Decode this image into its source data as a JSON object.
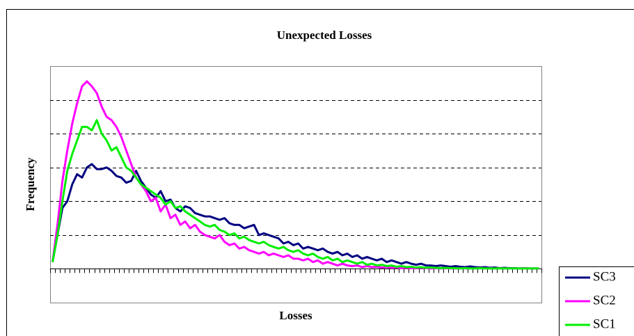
{
  "chart_data": {
    "type": "line",
    "title": "Unexpected Losses",
    "x_label": "Losses",
    "y_label": "Frequency",
    "categories": [
      null,
      null,
      null,
      null,
      null,
      null,
      null,
      null,
      null,
      null,
      null,
      null,
      null,
      null,
      null,
      null,
      null,
      null,
      null,
      null,
      null,
      null,
      null,
      null,
      null,
      null,
      null,
      null,
      null,
      null,
      null,
      null,
      null,
      null,
      null,
      null,
      null,
      null,
      null,
      null,
      null,
      null,
      null,
      null,
      null,
      null,
      null,
      null,
      null,
      null,
      null,
      null,
      null,
      null,
      null,
      null,
      null,
      null,
      null,
      null,
      null,
      null,
      null,
      null,
      null,
      null,
      null,
      null,
      null,
      null,
      null,
      null,
      null,
      null,
      null,
      null,
      null,
      null,
      null,
      null,
      null,
      null,
      null,
      null,
      null,
      null,
      null,
      null,
      null,
      null,
      null,
      null,
      null,
      null,
      null,
      null,
      null,
      null,
      null,
      null
    ],
    "ylim": [
      -1,
      6
    ],
    "yticks": [
      0,
      1,
      2,
      3,
      4,
      5
    ],
    "grid": true,
    "legend": "right",
    "series": [
      {
        "name": "SC3",
        "color": "#000080",
        "values": [
          0.2,
          1.0,
          1.8,
          2.0,
          2.5,
          2.8,
          2.7,
          3.0,
          3.1,
          2.95,
          2.95,
          3.0,
          2.9,
          2.75,
          2.7,
          2.55,
          2.6,
          2.9,
          2.6,
          2.4,
          2.2,
          2.1,
          2.3,
          2.0,
          2.05,
          1.8,
          1.7,
          1.85,
          1.8,
          1.65,
          1.6,
          1.55,
          1.55,
          1.5,
          1.45,
          1.5,
          1.35,
          1.3,
          1.3,
          1.2,
          1.25,
          1.3,
          1.0,
          1.05,
          1.0,
          0.95,
          0.9,
          0.75,
          0.8,
          0.7,
          0.75,
          0.6,
          0.65,
          0.6,
          0.55,
          0.6,
          0.5,
          0.45,
          0.5,
          0.4,
          0.45,
          0.35,
          0.4,
          0.3,
          0.35,
          0.3,
          0.25,
          0.3,
          0.2,
          0.25,
          0.2,
          0.15,
          0.2,
          0.15,
          0.12,
          0.15,
          0.1,
          0.1,
          0.08,
          0.1,
          0.08,
          0.06,
          0.08,
          0.06,
          0.05,
          0.07,
          0.05,
          0.04,
          0.05,
          0.03,
          0.04,
          0.02,
          0.03,
          0.02,
          0.02,
          0.01,
          0.02,
          0.01,
          0.01,
          0.01
        ]
      },
      {
        "name": "SC2",
        "color": "#ff00ff",
        "values": [
          0.2,
          1.3,
          2.6,
          3.5,
          4.3,
          4.9,
          5.4,
          5.55,
          5.4,
          5.2,
          4.8,
          4.5,
          4.4,
          4.2,
          3.9,
          3.5,
          3.1,
          2.7,
          2.5,
          2.3,
          2.0,
          2.1,
          1.7,
          1.9,
          1.5,
          1.6,
          1.3,
          1.4,
          1.2,
          1.3,
          1.1,
          1.0,
          0.95,
          0.9,
          1.0,
          0.8,
          0.7,
          0.75,
          0.6,
          0.65,
          0.55,
          0.5,
          0.45,
          0.5,
          0.4,
          0.45,
          0.4,
          0.35,
          0.4,
          0.3,
          0.3,
          0.25,
          0.3,
          0.2,
          0.25,
          0.15,
          0.2,
          0.15,
          0.1,
          0.15,
          0.1,
          0.08,
          0.1,
          0.05,
          0.08,
          0.05,
          0.06,
          0.04,
          0.05,
          0.03,
          0.04,
          0.02,
          0.03,
          0.02,
          0.02,
          0.03,
          0.02,
          0.01,
          0.02,
          0.01,
          0.02,
          0.01,
          0.01,
          0.02,
          0.01,
          0.01,
          0.01,
          0.02,
          0.01,
          0.01,
          0.01,
          0.01,
          0.01,
          0.01,
          0.01,
          0.01,
          0.02,
          0.01,
          0.01,
          0.01
        ]
      },
      {
        "name": "SC1",
        "color": "#00ee00",
        "values": [
          0.2,
          1.0,
          2.0,
          2.9,
          3.4,
          3.8,
          4.2,
          4.2,
          4.1,
          4.4,
          4.0,
          3.8,
          3.5,
          3.6,
          3.3,
          3.0,
          2.9,
          2.7,
          2.5,
          2.4,
          2.3,
          2.2,
          2.1,
          1.9,
          2.0,
          1.8,
          1.85,
          1.7,
          1.6,
          1.5,
          1.4,
          1.3,
          1.25,
          1.3,
          1.15,
          1.1,
          1.0,
          1.05,
          0.9,
          0.95,
          0.85,
          0.8,
          0.75,
          0.8,
          0.7,
          0.65,
          0.6,
          0.65,
          0.55,
          0.5,
          0.55,
          0.45,
          0.4,
          0.45,
          0.35,
          0.3,
          0.35,
          0.25,
          0.3,
          0.2,
          0.25,
          0.2,
          0.15,
          0.2,
          0.12,
          0.15,
          0.1,
          0.12,
          0.08,
          0.1,
          0.06,
          0.08,
          0.05,
          0.06,
          0.04,
          0.05,
          0.03,
          0.04,
          0.03,
          0.02,
          0.03,
          0.02,
          0.02,
          0.01,
          0.02,
          0.01,
          0.01,
          0.02,
          0.01,
          0.01,
          0.01,
          0.01,
          0.01,
          0.01,
          0.01,
          0.01,
          0.01,
          0.01,
          0.01,
          0.01
        ]
      }
    ]
  }
}
